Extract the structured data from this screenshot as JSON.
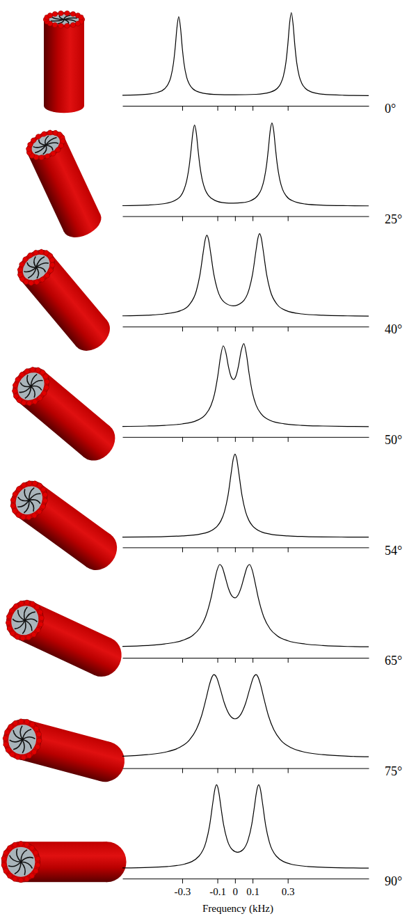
{
  "chart_data": [
    {
      "type": "line",
      "title": "0°",
      "color": "#000000",
      "xlim": [
        -0.64,
        0.76
      ],
      "ylim": [
        -0.12,
        1.05
      ],
      "xticks": [
        -0.3,
        -0.1,
        0,
        0.1,
        0.3
      ],
      "tick_labels": false,
      "x": [
        -0.64,
        -0.5,
        -0.44,
        -0.4,
        -0.38,
        -0.365,
        -0.35,
        -0.34,
        -0.33,
        -0.32,
        -0.31,
        -0.3,
        -0.29,
        -0.275,
        -0.26,
        -0.24,
        -0.2,
        -0.12,
        0,
        0.12,
        0.2,
        0.24,
        0.26,
        0.275,
        0.29,
        0.3,
        0.31,
        0.32,
        0.33,
        0.34,
        0.35,
        0.365,
        0.38,
        0.4,
        0.44,
        0.5,
        0.62,
        0.76
      ],
      "values": [
        0.006,
        0.019,
        0.041,
        0.085,
        0.141,
        0.224,
        0.39,
        0.58,
        0.82,
        0.95,
        0.82,
        0.58,
        0.39,
        0.224,
        0.141,
        0.085,
        0.042,
        0.017,
        0.012,
        0.018,
        0.044,
        0.089,
        0.148,
        0.236,
        0.41,
        0.61,
        0.862,
        1.0,
        0.862,
        0.61,
        0.41,
        0.236,
        0.148,
        0.089,
        0.042,
        0.019,
        0.007,
        0.003
      ]
    },
    {
      "type": "line",
      "title": "25°",
      "color": "#000000",
      "xlim": [
        -0.64,
        0.76
      ],
      "ylim": [
        -0.12,
        1.05
      ],
      "xticks": [
        -0.3,
        -0.1,
        0,
        0.1,
        0.3
      ],
      "tick_labels": false,
      "x": [
        -0.64,
        -0.5,
        -0.4,
        -0.33,
        -0.29,
        -0.275,
        -0.26,
        -0.25,
        -0.24,
        -0.23,
        -0.22,
        -0.21,
        -0.2,
        -0.185,
        -0.17,
        -0.15,
        -0.11,
        -0.06,
        -0.01,
        0.04,
        0.09,
        0.13,
        0.15,
        0.165,
        0.18,
        0.19,
        0.2,
        0.21,
        0.22,
        0.23,
        0.24,
        0.255,
        0.27,
        0.29,
        0.33,
        0.4,
        0.5,
        0.64,
        0.76
      ],
      "values": [
        0.006,
        0.014,
        0.031,
        0.083,
        0.198,
        0.304,
        0.489,
        0.673,
        0.877,
        0.974,
        0.878,
        0.674,
        0.49,
        0.305,
        0.2,
        0.126,
        0.066,
        0.041,
        0.036,
        0.042,
        0.067,
        0.13,
        0.206,
        0.316,
        0.505,
        0.695,
        0.905,
        1.0,
        0.905,
        0.694,
        0.504,
        0.314,
        0.204,
        0.127,
        0.062,
        0.026,
        0.012,
        0.006,
        0.004
      ]
    },
    {
      "type": "line",
      "title": "40°",
      "color": "#000000",
      "xlim": [
        -0.64,
        0.76
      ],
      "ylim": [
        -0.12,
        1.05
      ],
      "xticks": [
        -0.3,
        -0.1,
        0,
        0.1,
        0.3
      ],
      "tick_labels": false,
      "x": [
        -0.64,
        -0.5,
        -0.4,
        -0.31,
        -0.26,
        -0.22,
        -0.2,
        -0.18,
        -0.17,
        -0.16,
        -0.15,
        -0.14,
        -0.12,
        -0.1,
        -0.06,
        -0.01,
        0.04,
        0.08,
        0.1,
        0.12,
        0.13,
        0.14,
        0.15,
        0.16,
        0.18,
        0.2,
        0.24,
        0.29,
        0.38,
        0.5,
        0.64,
        0.76
      ],
      "values": [
        0.009,
        0.017,
        0.032,
        0.071,
        0.142,
        0.308,
        0.494,
        0.783,
        0.919,
        0.978,
        0.922,
        0.788,
        0.503,
        0.323,
        0.171,
        0.129,
        0.172,
        0.328,
        0.512,
        0.803,
        0.94,
        0.997,
        0.938,
        0.799,
        0.503,
        0.314,
        0.145,
        0.073,
        0.032,
        0.016,
        0.009,
        0.006
      ]
    },
    {
      "type": "line",
      "title": "50°",
      "color": "#000000",
      "xlim": [
        -0.64,
        0.76
      ],
      "ylim": [
        -0.12,
        1.05
      ],
      "xticks": [
        -0.3,
        -0.1,
        0,
        0.1,
        0.3
      ],
      "tick_labels": false,
      "x": [
        -0.64,
        -0.5,
        -0.4,
        -0.3,
        -0.22,
        -0.17,
        -0.137,
        -0.117,
        -0.097,
        -0.082,
        -0.067,
        -0.052,
        -0.037,
        -0.022,
        -0.008,
        0.005,
        0.02,
        0.035,
        0.05,
        0.065,
        0.08,
        0.1,
        0.12,
        0.15,
        0.2,
        0.28,
        0.38,
        0.5,
        0.64,
        0.76
      ],
      "values": [
        0.007,
        0.012,
        0.02,
        0.037,
        0.076,
        0.144,
        0.257,
        0.392,
        0.626,
        0.848,
        0.975,
        0.893,
        0.722,
        0.603,
        0.57,
        0.609,
        0.736,
        0.915,
        1.002,
        0.872,
        0.643,
        0.403,
        0.262,
        0.155,
        0.079,
        0.038,
        0.02,
        0.012,
        0.007,
        0.005
      ]
    },
    {
      "type": "line",
      "title": "54°",
      "color": "#000000",
      "xlim": [
        -0.64,
        0.76
      ],
      "ylim": [
        -0.12,
        1.05
      ],
      "xticks": [
        -0.3,
        -0.1,
        0,
        0.1,
        0.3
      ],
      "tick_labels": false,
      "x": [
        -0.64,
        -0.5,
        -0.4,
        -0.3,
        -0.2,
        -0.15,
        -0.12,
        -0.1,
        -0.08,
        -0.06,
        -0.04,
        -0.02,
        -0.01,
        0,
        0.01,
        0.02,
        0.04,
        0.06,
        0.08,
        0.1,
        0.12,
        0.15,
        0.2,
        0.3,
        0.4,
        0.5,
        0.64,
        0.76
      ],
      "values": [
        0.004,
        0.006,
        0.01,
        0.018,
        0.039,
        0.066,
        0.1,
        0.138,
        0.2,
        0.308,
        0.5,
        0.8,
        0.941,
        1.0,
        0.941,
        0.8,
        0.5,
        0.308,
        0.2,
        0.138,
        0.1,
        0.066,
        0.039,
        0.018,
        0.01,
        0.006,
        0.004,
        0.003
      ]
    },
    {
      "type": "line",
      "title": "65°",
      "color": "#000000",
      "xlim": [
        -0.64,
        0.76
      ],
      "ylim": [
        -0.12,
        1.05
      ],
      "xticks": [
        -0.3,
        -0.1,
        0,
        0.1,
        0.3
      ],
      "tick_labels": false,
      "x": [
        -0.64,
        -0.5,
        -0.4,
        -0.3,
        -0.24,
        -0.2,
        -0.167,
        -0.137,
        -0.117,
        -0.102,
        -0.087,
        -0.072,
        -0.057,
        -0.037,
        -0.017,
        0,
        0.017,
        0.037,
        0.053,
        0.068,
        0.083,
        0.098,
        0.113,
        0.133,
        0.163,
        0.2,
        0.24,
        0.3,
        0.4,
        0.5,
        0.64,
        0.76
      ],
      "values": [
        0.017,
        0.028,
        0.046,
        0.088,
        0.15,
        0.237,
        0.373,
        0.593,
        0.795,
        0.932,
        1.0,
        0.964,
        0.86,
        0.711,
        0.62,
        0.599,
        0.632,
        0.738,
        0.86,
        0.964,
        1.0,
        0.932,
        0.795,
        0.593,
        0.373,
        0.225,
        0.144,
        0.085,
        0.045,
        0.028,
        0.016,
        0.012
      ]
    },
    {
      "type": "line",
      "title": "75°",
      "color": "#000000",
      "xlim": [
        -0.64,
        0.76
      ],
      "ylim": [
        -0.12,
        1.05
      ],
      "xticks": [
        -0.3,
        -0.1,
        0,
        0.1,
        0.3
      ],
      "tick_labels": false,
      "x": [
        -0.64,
        -0.5,
        -0.4,
        -0.32,
        -0.26,
        -0.22,
        -0.19,
        -0.165,
        -0.145,
        -0.13,
        -0.12,
        -0.105,
        -0.085,
        -0.06,
        -0.03,
        0,
        0.03,
        0.06,
        0.085,
        0.105,
        0.12,
        0.13,
        0.145,
        0.165,
        0.19,
        0.22,
        0.26,
        0.32,
        0.4,
        0.5,
        0.64,
        0.76
      ],
      "values": [
        0.024,
        0.042,
        0.071,
        0.125,
        0.217,
        0.344,
        0.51,
        0.711,
        0.885,
        0.979,
        1.003,
        0.971,
        0.841,
        0.658,
        0.517,
        0.472,
        0.517,
        0.658,
        0.841,
        0.971,
        1.003,
        0.979,
        0.885,
        0.711,
        0.51,
        0.344,
        0.217,
        0.125,
        0.071,
        0.042,
        0.024,
        0.017
      ]
    },
    {
      "type": "line",
      "title": "90°",
      "color": "#000000",
      "xlim": [
        -0.64,
        0.76
      ],
      "ylim": [
        -0.12,
        1.05
      ],
      "xticks": [
        -0.3,
        -0.1,
        0,
        0.1,
        0.3
      ],
      "tick_labels": "x",
      "x_label": "Frequency (kHz)",
      "x": [
        -0.64,
        -0.485,
        -0.385,
        -0.285,
        -0.205,
        -0.165,
        -0.145,
        -0.125,
        -0.115,
        -0.105,
        -0.095,
        -0.09,
        -0.08,
        -0.065,
        -0.045,
        -0.015,
        0.015,
        0.045,
        0.075,
        0.095,
        0.11,
        0.12,
        0.125,
        0.135,
        0.145,
        0.155,
        0.175,
        0.195,
        0.235,
        0.315,
        0.415,
        0.515,
        0.76
      ],
      "values": [
        0.008,
        0.015,
        0.025,
        0.055,
        0.149,
        0.319,
        0.51,
        0.807,
        0.947,
        1.006,
        0.951,
        0.89,
        0.738,
        0.528,
        0.348,
        0.226,
        0.196,
        0.226,
        0.348,
        0.528,
        0.738,
        0.89,
        0.951,
        1.006,
        0.947,
        0.807,
        0.51,
        0.319,
        0.149,
        0.055,
        0.025,
        0.015,
        0.006
      ]
    }
  ]
}
